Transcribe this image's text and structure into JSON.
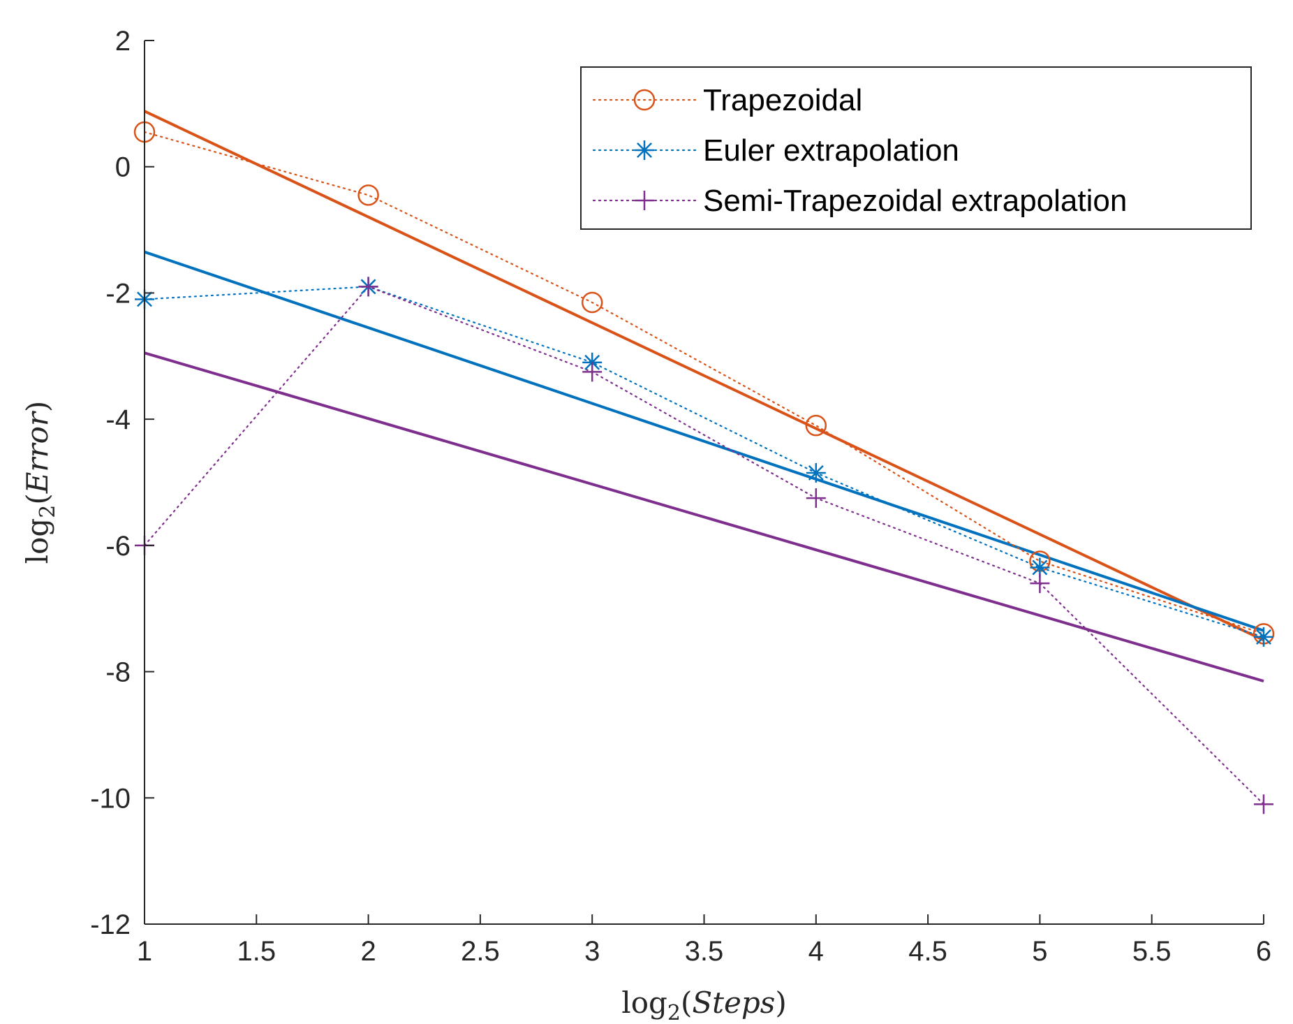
{
  "chart_data": {
    "type": "line",
    "title": "",
    "xlabel": {
      "func": "log",
      "base": "2",
      "arg": "Steps"
    },
    "ylabel": {
      "func": "log",
      "base": "2",
      "arg": "Error"
    },
    "xlim": [
      1,
      6
    ],
    "ylim": [
      -12,
      2
    ],
    "x_ticks": [
      1,
      1.5,
      2,
      2.5,
      3,
      3.5,
      4,
      4.5,
      5,
      5.5,
      6
    ],
    "x_tick_labels": [
      "1",
      "1.5",
      "2",
      "2.5",
      "3",
      "3.5",
      "4",
      "4.5",
      "5",
      "5.5",
      "6"
    ],
    "y_ticks": [
      2,
      0,
      -2,
      -4,
      -6,
      -8,
      -10,
      -12
    ],
    "y_tick_labels": [
      "2",
      "0",
      "-2",
      "-4",
      "-6",
      "-8",
      "-10",
      "-12"
    ],
    "grid": false,
    "legend_position": "top-right",
    "series": [
      {
        "name": "Trapezoidal",
        "color": "#D95319",
        "marker": "circle",
        "x": [
          1,
          2,
          3,
          4,
          5,
          6
        ],
        "y": [
          0.55,
          -0.45,
          -2.15,
          -4.1,
          -6.25,
          -7.4
        ],
        "fit": [
          [
            1,
            0.88
          ],
          [
            6,
            -7.5
          ]
        ]
      },
      {
        "name": "Euler extrapolation",
        "color": "#0072BD",
        "marker": "asterisk",
        "x": [
          1,
          2,
          3,
          4,
          5,
          6
        ],
        "y": [
          -2.1,
          -1.9,
          -3.1,
          -4.85,
          -6.35,
          -7.45
        ],
        "fit": [
          [
            1,
            -1.35
          ],
          [
            6,
            -7.35
          ]
        ]
      },
      {
        "name": "Semi-Trapezoidal extrapolation",
        "color": "#7E2F8E",
        "marker": "plus",
        "x": [
          1,
          2,
          3,
          4,
          5,
          6
        ],
        "y": [
          -6.0,
          -1.9,
          -3.25,
          -5.25,
          -6.6,
          -10.1
        ],
        "fit": [
          [
            1,
            -2.95
          ],
          [
            6,
            -8.15
          ]
        ]
      }
    ]
  }
}
